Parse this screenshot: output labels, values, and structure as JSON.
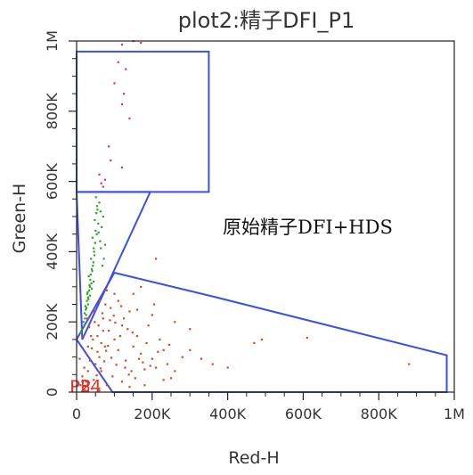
{
  "chart_data": {
    "type": "scatter",
    "title": "plot2:精子DFI_P1",
    "xlabel": "Red-H",
    "ylabel": "Green-H",
    "xlim": [
      0,
      1000000
    ],
    "ylim": [
      0,
      1000000
    ],
    "x_ticks": [
      {
        "value": 0,
        "label": "0"
      },
      {
        "value": 200000,
        "label": "200K"
      },
      {
        "value": 400000,
        "label": "400K"
      },
      {
        "value": 600000,
        "label": "600K"
      },
      {
        "value": 800000,
        "label": "800K"
      },
      {
        "value": 1000000,
        "label": "1M"
      }
    ],
    "y_ticks": [
      {
        "value": 0,
        "label": "0"
      },
      {
        "value": 200000,
        "label": "200K"
      },
      {
        "value": 400000,
        "label": "400K"
      },
      {
        "value": 600000,
        "label": "600K"
      },
      {
        "value": 800000,
        "label": "800K"
      },
      {
        "value": 1000000,
        "label": "1M"
      }
    ],
    "grid": false,
    "annotation": "原始精子DFI+HDS",
    "gates": [
      {
        "name": "P4",
        "color": "#3b4fe6",
        "points": [
          [
            0,
            970000
          ],
          [
            350000,
            970000
          ],
          [
            350000,
            570000
          ],
          [
            0,
            570000
          ]
        ]
      },
      {
        "name": "P2",
        "color": "#3b4fe6",
        "points": [
          [
            0,
            570000
          ],
          [
            195000,
            570000
          ],
          [
            15000,
            150000
          ]
        ]
      },
      {
        "name": "P3",
        "color": "#3b4fe6",
        "points": [
          [
            0,
            150000
          ],
          [
            100000,
            340000
          ],
          [
            370000,
            270000
          ],
          [
            980000,
            105000
          ],
          [
            980000,
            0
          ],
          [
            95000,
            0
          ]
        ]
      }
    ],
    "series": [
      {
        "color": "#d44a1a",
        "values": [
          [
            40000,
            125000
          ],
          [
            55000,
            160000
          ],
          [
            70000,
            210000
          ],
          [
            90000,
            240000
          ],
          [
            60000,
            100000
          ],
          [
            75000,
            130000
          ],
          [
            100000,
            150000
          ],
          [
            85000,
            175000
          ],
          [
            120000,
            190000
          ],
          [
            110000,
            120000
          ],
          [
            130000,
            90000
          ],
          [
            150000,
            130000
          ],
          [
            170000,
            110000
          ],
          [
            140000,
            230000
          ],
          [
            160000,
            160000
          ],
          [
            185000,
            140000
          ],
          [
            200000,
            95000
          ],
          [
            210000,
            70000
          ],
          [
            180000,
            65000
          ],
          [
            50000,
            80000
          ],
          [
            65000,
            60000
          ],
          [
            95000,
            45000
          ],
          [
            120000,
            30000
          ],
          [
            80000,
            20000
          ],
          [
            45000,
            35000
          ],
          [
            30000,
            60000
          ],
          [
            35000,
            90000
          ],
          [
            25000,
            110000
          ],
          [
            55000,
            115000
          ],
          [
            65000,
            140000
          ],
          [
            78000,
            118000
          ],
          [
            92000,
            98000
          ],
          [
            105000,
            78000
          ],
          [
            115000,
            160000
          ],
          [
            125000,
            210000
          ],
          [
            135000,
            180000
          ],
          [
            145000,
            60000
          ],
          [
            155000,
            40000
          ],
          [
            175000,
            85000
          ],
          [
            190000,
            190000
          ],
          [
            205000,
            250000
          ],
          [
            220000,
            150000
          ],
          [
            230000,
            120000
          ],
          [
            240000,
            80000
          ],
          [
            260000,
            60000
          ],
          [
            280000,
            100000
          ],
          [
            300000,
            120000
          ],
          [
            330000,
            95000
          ],
          [
            360000,
            80000
          ],
          [
            400000,
            70000
          ],
          [
            470000,
            140000
          ],
          [
            490000,
            150000
          ],
          [
            610000,
            155000
          ],
          [
            880000,
            80000
          ],
          [
            100000,
            280000
          ],
          [
            80000,
            290000
          ],
          [
            60000,
            260000
          ],
          [
            45000,
            230000
          ],
          [
            70000,
            175000
          ],
          [
            58000,
            190000
          ],
          [
            88000,
            205000
          ],
          [
            98000,
            218000
          ],
          [
            110000,
            260000
          ],
          [
            150000,
            280000
          ],
          [
            170000,
            300000
          ],
          [
            200000,
            220000
          ],
          [
            260000,
            200000
          ],
          [
            300000,
            180000
          ],
          [
            10000,
            20000
          ],
          [
            15000,
            45000
          ],
          [
            20000,
            70000
          ],
          [
            8000,
            95000
          ],
          [
            25000,
            30000
          ],
          [
            40000,
            10000
          ],
          [
            60000,
            5000
          ],
          [
            30000,
            130000
          ],
          [
            38000,
            160000
          ],
          [
            48000,
            200000
          ],
          [
            68000,
            225000
          ],
          [
            76000,
            250000
          ],
          [
            250000,
            40000
          ],
          [
            230000,
            35000
          ],
          [
            180000,
            20000
          ],
          [
            140000,
            15000
          ],
          [
            160000,
            235000
          ],
          [
            118000,
            245000
          ],
          [
            102000,
            198000
          ],
          [
            83000,
            132000
          ],
          [
            73000,
            88000
          ],
          [
            63000,
            68000
          ],
          [
            53000,
            48000
          ],
          [
            43000,
            150000
          ],
          [
            33000,
            185000
          ],
          [
            28000,
            210000
          ],
          [
            18000,
            160000
          ],
          [
            210000,
            380000
          ],
          [
            165000,
            95000
          ],
          [
            195000,
            75000
          ],
          [
            215000,
            115000
          ],
          [
            245000,
            135000
          ],
          [
            128000,
            70000
          ],
          [
            138000,
            50000
          ],
          [
            148000,
            170000
          ],
          [
            22000,
            5000
          ]
        ]
      },
      {
        "color": "#2aa52a",
        "values": [
          [
            20000,
            190000
          ],
          [
            25000,
            220000
          ],
          [
            30000,
            250000
          ],
          [
            28000,
            280000
          ],
          [
            35000,
            300000
          ],
          [
            32000,
            330000
          ],
          [
            40000,
            350000
          ],
          [
            38000,
            380000
          ],
          [
            45000,
            410000
          ],
          [
            42000,
            440000
          ],
          [
            50000,
            460000
          ],
          [
            48000,
            490000
          ],
          [
            55000,
            520000
          ],
          [
            60000,
            540000
          ],
          [
            52000,
            510000
          ],
          [
            36000,
            320000
          ],
          [
            33000,
            290000
          ],
          [
            27000,
            260000
          ],
          [
            24000,
            235000
          ],
          [
            22000,
            210000
          ],
          [
            46000,
            400000
          ],
          [
            44000,
            370000
          ],
          [
            41000,
            345000
          ],
          [
            39000,
            310000
          ],
          [
            57000,
            480000
          ],
          [
            62000,
            430000
          ],
          [
            66000,
            470000
          ],
          [
            70000,
            500000
          ],
          [
            53000,
            450000
          ],
          [
            49000,
            425000
          ],
          [
            47000,
            390000
          ],
          [
            43000,
            360000
          ],
          [
            30000,
            270000
          ],
          [
            26000,
            240000
          ],
          [
            18000,
            200000
          ],
          [
            15000,
            180000
          ],
          [
            12000,
            170000
          ],
          [
            34000,
            305000
          ],
          [
            37000,
            335000
          ],
          [
            29000,
            285000
          ],
          [
            58000,
            455000
          ],
          [
            64000,
            410000
          ],
          [
            72000,
            380000
          ],
          [
            75000,
            420000
          ],
          [
            68000,
            360000
          ],
          [
            54000,
            530000
          ],
          [
            51000,
            555000
          ],
          [
            63000,
            515000
          ],
          [
            21000,
            225000
          ],
          [
            31000,
            265000
          ],
          [
            23000,
            245000
          ],
          [
            35000,
            275000
          ],
          [
            40000,
            295000
          ],
          [
            45000,
            315000
          ]
        ]
      },
      {
        "color": "#d62b8a",
        "values": [
          [
            120000,
            990000
          ],
          [
            170000,
            995000
          ],
          [
            150000,
            1000000
          ],
          [
            110000,
            940000
          ],
          [
            130000,
            920000
          ],
          [
            100000,
            880000
          ],
          [
            125000,
            850000
          ],
          [
            140000,
            780000
          ],
          [
            85000,
            700000
          ],
          [
            120000,
            640000
          ],
          [
            60000,
            620000
          ],
          [
            70000,
            585000
          ],
          [
            75000,
            605000
          ],
          [
            65000,
            595000
          ],
          [
            120000,
            820000
          ],
          [
            90000,
            660000
          ]
        ]
      }
    ]
  }
}
